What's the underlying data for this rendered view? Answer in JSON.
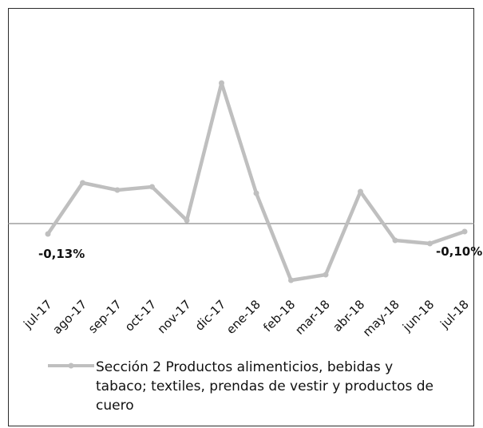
{
  "chart_data": {
    "type": "line",
    "categories": [
      "jul-17",
      "ago-17",
      "sep-17",
      "oct-17",
      "nov-17",
      "dic-17",
      "ene-18",
      "feb-18",
      "mar-18",
      "abr-18",
      "may-18",
      "jun-18",
      "jul-18"
    ],
    "series": [
      {
        "name": "Sección 2 Productos alimenticios, bebidas y tabaco; textiles, prendas de vestir y productos de cuero",
        "values": [
          -0.13,
          0.51,
          0.42,
          0.46,
          0.04,
          1.76,
          0.38,
          -0.71,
          -0.64,
          0.4,
          -0.21,
          -0.25,
          -0.1
        ],
        "color": "#bfbfbf"
      }
    ],
    "data_labels": [
      {
        "index": 0,
        "text": "-0,13%"
      },
      {
        "index": 12,
        "text": "-0,10%"
      }
    ],
    "ylim": [
      -1.8,
      2.4
    ],
    "baseline": 0,
    "grid": false,
    "legend_position": "bottom",
    "title": "",
    "xlabel": "",
    "ylabel": ""
  }
}
